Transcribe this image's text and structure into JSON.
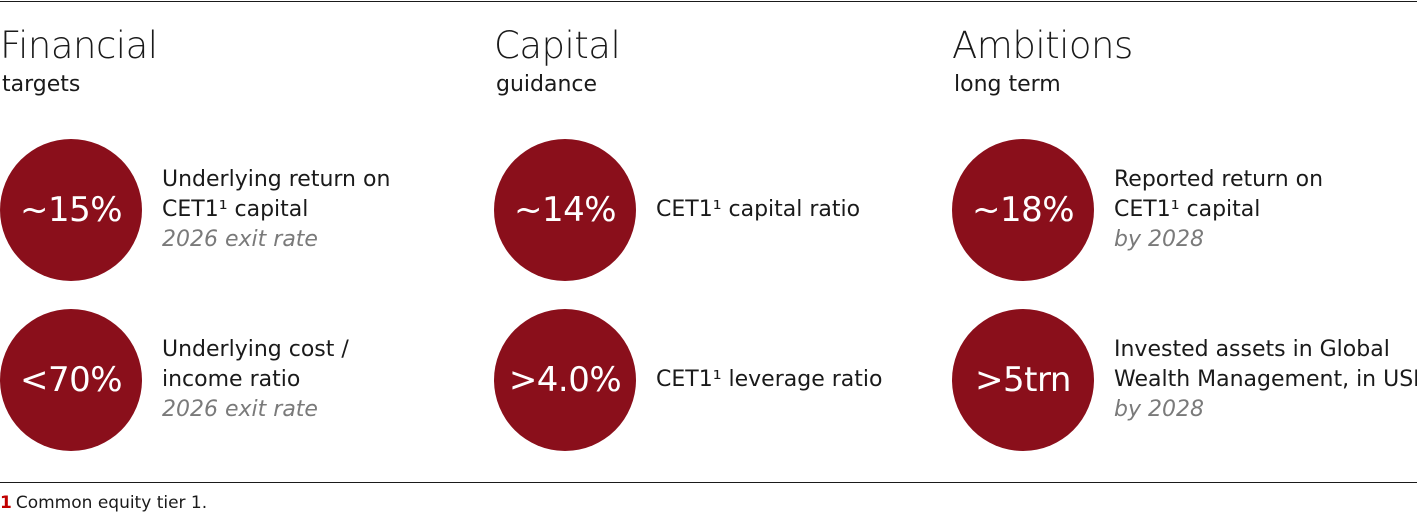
{
  "columns": [
    {
      "title": "Financial",
      "subtitle": "targets",
      "items": [
        {
          "value": "~15%",
          "line1": "Underlying return on",
          "line2": "CET1¹ capital",
          "note": "2026 exit rate"
        },
        {
          "value": "<70%",
          "line1": "Underlying cost /",
          "line2": "income ratio",
          "note": "2026 exit rate"
        }
      ]
    },
    {
      "title": "Capital",
      "subtitle": "guidance",
      "items": [
        {
          "value": "~14%",
          "line1": "CET1¹ capital ratio"
        },
        {
          "value": ">4.0%",
          "line1": "CET1¹ leverage ratio"
        }
      ]
    },
    {
      "title": "Ambitions",
      "subtitle": "long term",
      "items": [
        {
          "value": "~18%",
          "line1": "Reported return on",
          "line2": "CET1¹ capital",
          "note": "by 2028"
        },
        {
          "value": ">5trn",
          "line1": "Invested assets in Global",
          "line2": "Wealth Management, in USD",
          "note": "by 2028"
        }
      ]
    }
  ],
  "footnote": {
    "number": "1",
    "text": "Common equity tier 1."
  },
  "colors": {
    "circle": "#8a0f1b",
    "note_text": "#7a7a7a",
    "footnote_number": "#c00000"
  }
}
